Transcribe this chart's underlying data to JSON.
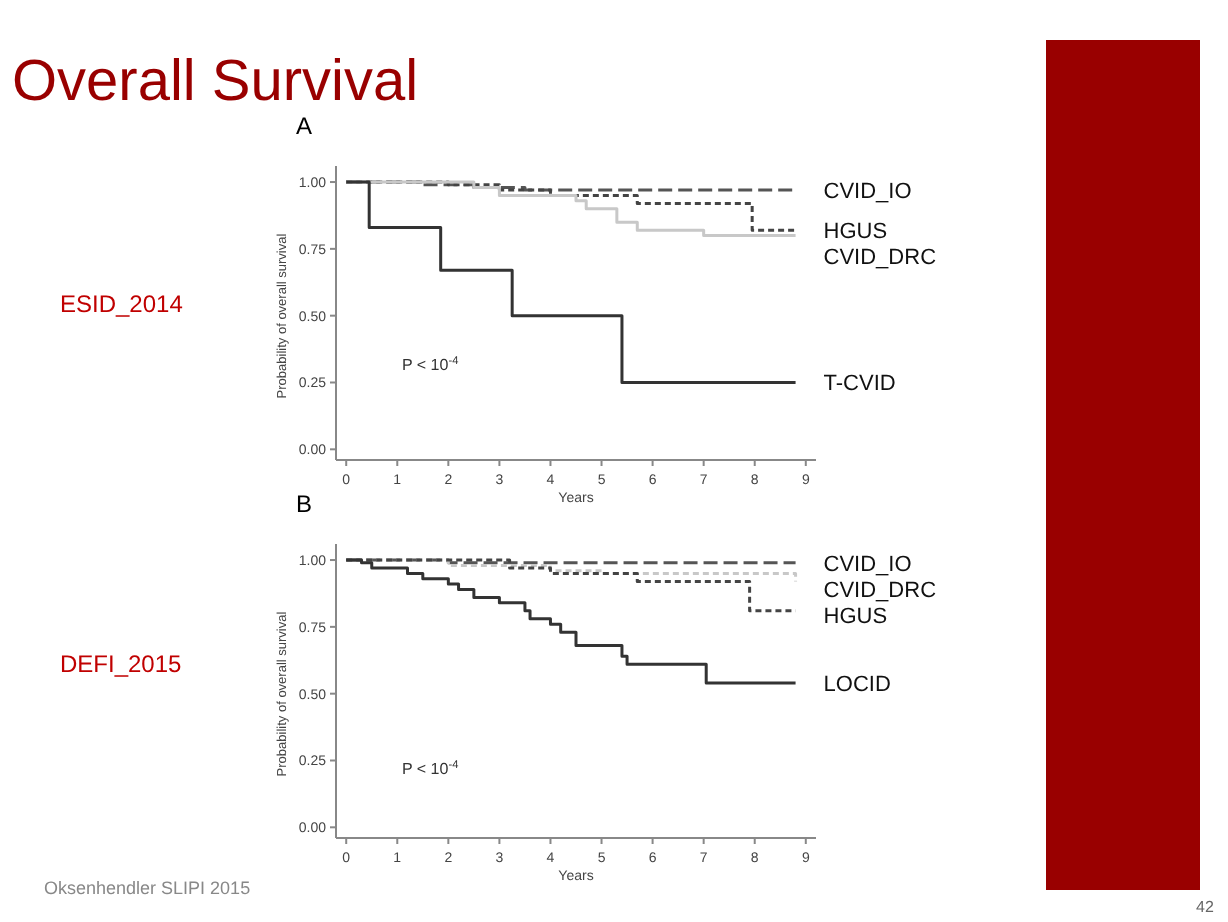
{
  "chart_data": [
    {
      "type": "step",
      "title": "A",
      "xlabel": "Years",
      "ylabel": "Probability of overall survival",
      "xlim": [
        -0.2,
        9.2
      ],
      "ylim": [
        -0.04,
        1.06
      ],
      "xticks": [
        0,
        1,
        2,
        3,
        4,
        5,
        6,
        7,
        8,
        9
      ],
      "yticks": [
        {
          "value": 0,
          "label": "0.00"
        },
        {
          "value": 0.25,
          "label": "0.25"
        },
        {
          "value": 0.5,
          "label": "0.50"
        },
        {
          "value": 0.75,
          "label": "0.75"
        },
        {
          "value": 1,
          "label": "1.00"
        }
      ],
      "grid": false,
      "legend": false,
      "annotations": [
        "Overall Survival",
        "ESID_2014",
        "P < 10$^{-4}$"
      ],
      "series": [
        {
          "name": "CVID_IO",
          "color": "#555555",
          "line_style": "dashed",
          "x": [
            0,
            1.5,
            2.5,
            3.5,
            8.8
          ],
          "values": [
            1,
            0.99,
            0.98,
            0.97,
            0.97
          ]
        },
        {
          "name": "HGUS",
          "color": "#444444",
          "line_style": "dotted",
          "x": [
            0,
            2,
            3,
            4,
            5.7,
            7.95,
            8.8
          ],
          "values": [
            1,
            0.99,
            0.97,
            0.95,
            0.92,
            0.82,
            0.82
          ]
        },
        {
          "name": "CVID_DRC",
          "color": "#c8c8c8",
          "line_style": "solid",
          "x": [
            0,
            2.5,
            3,
            4.5,
            4.7,
            5.3,
            5.7,
            7,
            8.8
          ],
          "values": [
            1,
            0.98,
            0.95,
            0.93,
            0.9,
            0.85,
            0.82,
            0.8,
            0.8
          ]
        },
        {
          "name": "T-CVID",
          "color": "#333333",
          "line_style": "solid",
          "x": [
            0,
            0.45,
            1.85,
            3.25,
            5.4,
            8.8
          ],
          "values": [
            1,
            0.83,
            0.67,
            0.5,
            0.25,
            0.25
          ]
        }
      ]
    },
    {
      "type": "step",
      "title": "B",
      "xlabel": "Years",
      "ylabel": "Probability of overall survival",
      "xlim": [
        -0.2,
        9.2
      ],
      "ylim": [
        -0.04,
        1.06
      ],
      "xticks": [
        0,
        1,
        2,
        3,
        4,
        5,
        6,
        7,
        8,
        9
      ],
      "yticks": [
        {
          "value": 0,
          "label": "0.00"
        },
        {
          "value": 0.25,
          "label": "0.25"
        },
        {
          "value": 0.5,
          "label": "0.50"
        },
        {
          "value": 0.75,
          "label": "0.75"
        },
        {
          "value": 1,
          "label": "1.00"
        }
      ],
      "grid": false,
      "legend": false,
      "annotations": [
        "DEFI_2015",
        "P < 10$^{-4}$",
        "Oksenhendler SLIPI 2015",
        "42"
      ],
      "series": [
        {
          "name": "CVID_IO",
          "color": "#555555",
          "line_style": "dashed",
          "x": [
            0,
            0.5,
            2,
            8.8
          ],
          "values": [
            1,
            1,
            0.99,
            0.99
          ]
        },
        {
          "name": "CVID_DRC",
          "color": "#c8c8c8",
          "line_style": "dotted",
          "x": [
            0,
            2,
            4,
            5,
            8.8
          ],
          "values": [
            1,
            0.98,
            0.96,
            0.95,
            0.92
          ]
        },
        {
          "name": "HGUS",
          "color": "#444444",
          "line_style": "dotted",
          "x": [
            0,
            3.2,
            4,
            5.7,
            7.9,
            8.8
          ],
          "values": [
            1,
            0.97,
            0.95,
            0.92,
            0.81,
            0.81
          ]
        },
        {
          "name": "LOCID",
          "color": "#333333",
          "line_style": "solid",
          "x": [
            0,
            0.3,
            0.5,
            1.2,
            1.5,
            2,
            2.2,
            2.5,
            3,
            3.5,
            3.6,
            4,
            4.2,
            4.5,
            5.4,
            5.5,
            7.05,
            8.8
          ],
          "values": [
            1,
            0.99,
            0.97,
            0.95,
            0.93,
            0.91,
            0.89,
            0.86,
            0.84,
            0.81,
            0.78,
            0.76,
            0.73,
            0.68,
            0.64,
            0.61,
            0.54,
            0.54
          ]
        }
      ]
    }
  ]
}
